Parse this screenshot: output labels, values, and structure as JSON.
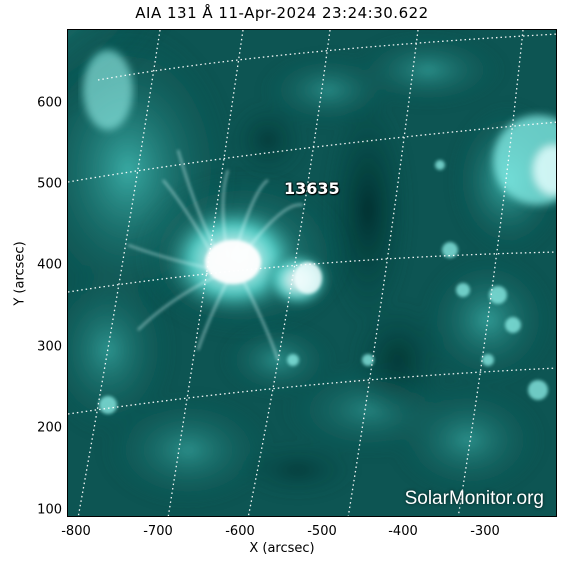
{
  "title": "AIA 131 Å 11-Apr-2024 23:24:30.622",
  "ar_number": "13635",
  "watermark": "SolarMonitor.org",
  "axes": {
    "xlabel": "X (arcsec)",
    "ylabel": "Y (arcsec)",
    "x_ticks": [
      "-800",
      "-700",
      "-600",
      "-500",
      "-400",
      "-300"
    ],
    "y_ticks": [
      "600",
      "500",
      "400",
      "300",
      "200",
      "100"
    ]
  },
  "colors": {
    "background_teal": "#0a4a47",
    "bright_teal": "#7ff5ee",
    "core": "#ffffff",
    "grid": "#ffffff"
  }
}
